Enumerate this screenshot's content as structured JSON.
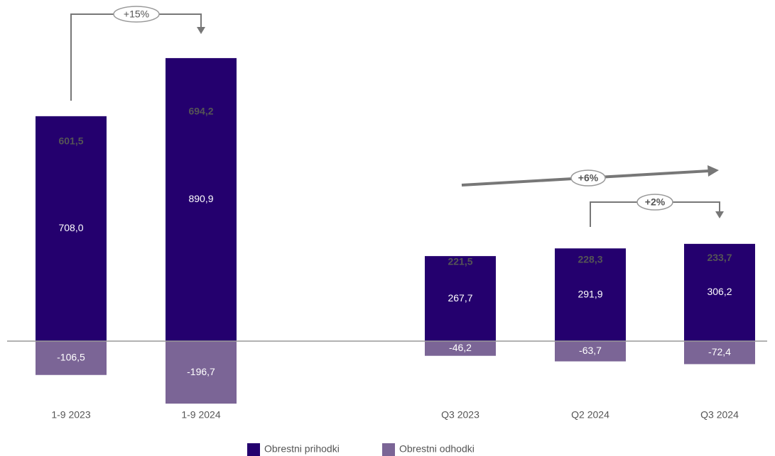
{
  "chart_data": {
    "type": "bar",
    "stacked": true,
    "categories": [
      "1-9 2023",
      "1-9 2024",
      "Q3 2023",
      "Q2 2024",
      "Q3 2024"
    ],
    "series": [
      {
        "name": "Obrestni prihodki",
        "color": "#24006e",
        "values": [
          708.0,
          890.9,
          267.7,
          291.9,
          306.2
        ],
        "value_labels": [
          "708,0",
          "890,9",
          "267,7",
          "291,9",
          "306,2"
        ]
      },
      {
        "name": "Obrestni odhodki",
        "color": "#7b6596",
        "values": [
          -106.5,
          -196.7,
          -46.2,
          -63.7,
          -72.4
        ],
        "value_labels": [
          "-106,5",
          "-196,7",
          "-46,2",
          "-63,7",
          "-72,4"
        ]
      }
    ],
    "totals": [
      601.5,
      694.2,
      221.5,
      228.3,
      233.7
    ],
    "total_labels": [
      "601,5",
      "694,2",
      "221,5",
      "228,3",
      "233,7"
    ],
    "annotations": [
      "+15%",
      "+6%",
      "+2%"
    ],
    "ylim": [
      -220,
      980
    ]
  }
}
